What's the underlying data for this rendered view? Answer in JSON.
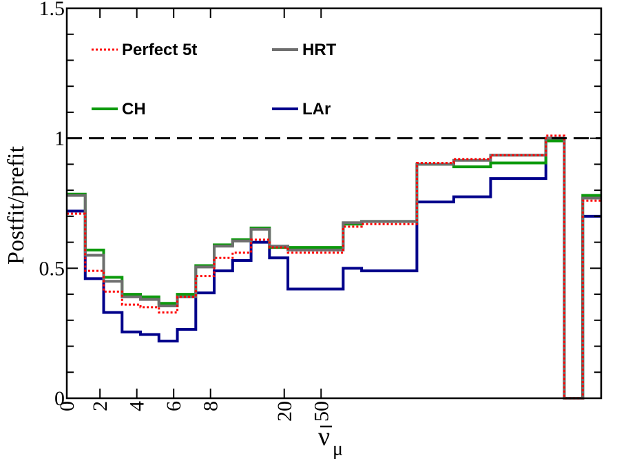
{
  "chart_data": {
    "type": "line",
    "step": true,
    "title": "",
    "xlabel": "ν̄μ",
    "xlabel_parts": {
      "base": "ν",
      "sub": "μ"
    },
    "ylabel": "Postfit/prefit",
    "ylim": [
      0,
      1.5
    ],
    "yticks": [
      "0",
      "0.5",
      "1",
      "1.5"
    ],
    "y_tick_values": [
      0,
      0.5,
      1,
      1.5
    ],
    "xticks": [
      "0",
      "2",
      "4",
      "6",
      "8",
      "20",
      "50"
    ],
    "x_tick_bin_index": [
      0,
      1.8,
      3.8,
      5.8,
      7.8,
      11.8,
      13.8
    ],
    "reference_line": {
      "y": 1.0,
      "style": "dashed"
    },
    "bins": 29,
    "legend_placement": "top-left",
    "grid": false,
    "series": [
      {
        "name": "Perfect 5t",
        "color": "#ff0000",
        "dash": "dotted",
        "values": [
          0.71,
          0.49,
          0.41,
          0.36,
          0.35,
          0.33,
          0.39,
          0.47,
          0.54,
          0.56,
          0.61,
          0.58,
          0.56,
          0.56,
          0.56,
          0.66,
          0.67,
          0.67,
          0.67,
          0.905,
          0.905,
          0.92,
          0.92,
          0.935,
          0.935,
          0.935,
          1.01,
          0.0,
          0.76
        ]
      },
      {
        "name": "HRT",
        "color": "#6e6e6e",
        "dash": "solid",
        "values": [
          0.78,
          0.55,
          0.45,
          0.39,
          0.38,
          0.355,
          0.39,
          0.505,
          0.585,
          0.605,
          0.65,
          0.585,
          0.57,
          0.57,
          0.57,
          0.675,
          0.68,
          0.68,
          0.68,
          0.9,
          0.9,
          0.915,
          0.915,
          0.935,
          0.935,
          0.935,
          1.0,
          0.0,
          0.77
        ]
      },
      {
        "name": "CH",
        "color": "#0c9a0c",
        "dash": "solid",
        "values": [
          0.785,
          0.57,
          0.465,
          0.4,
          0.39,
          0.365,
          0.4,
          0.51,
          0.59,
          0.61,
          0.655,
          0.58,
          0.58,
          0.58,
          0.58,
          0.67,
          0.68,
          0.68,
          0.68,
          0.9,
          0.9,
          0.89,
          0.89,
          0.905,
          0.905,
          0.905,
          0.99,
          0.0,
          0.78
        ]
      },
      {
        "name": "LAr",
        "color": "#00008b",
        "dash": "solid",
        "values": [
          0.72,
          0.46,
          0.33,
          0.255,
          0.245,
          0.22,
          0.265,
          0.405,
          0.49,
          0.53,
          0.6,
          0.54,
          0.42,
          0.42,
          0.42,
          0.5,
          0.49,
          0.49,
          0.49,
          0.755,
          0.755,
          0.775,
          0.775,
          0.845,
          0.845,
          0.845,
          1.0,
          0.0,
          0.7
        ]
      }
    ]
  }
}
